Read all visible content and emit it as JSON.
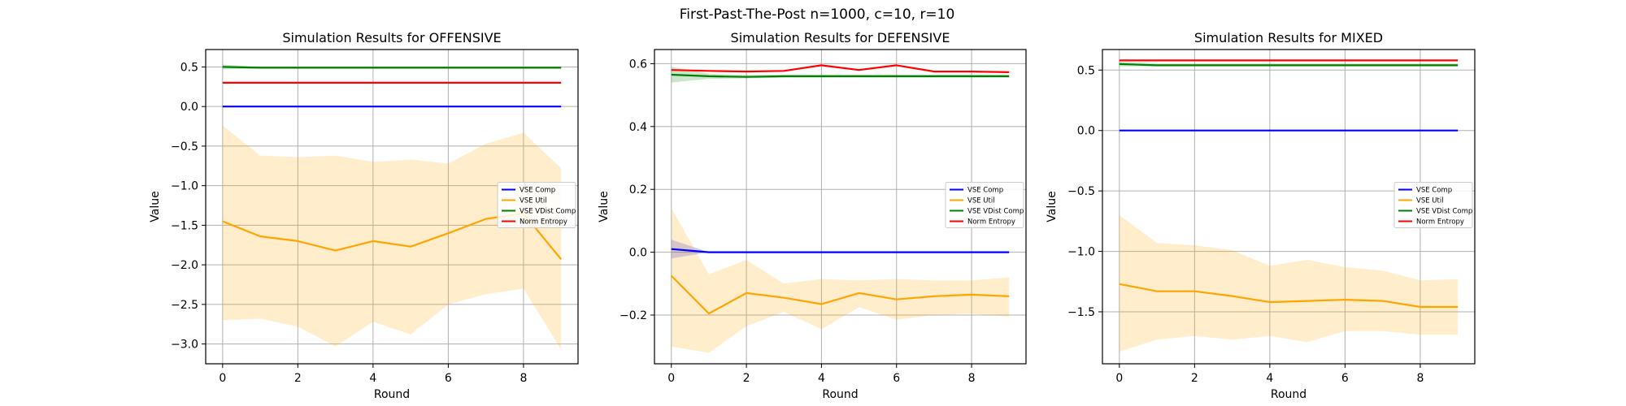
{
  "figure": {
    "suptitle": "First-Past-The-Post n=1000, c=10, r=10"
  },
  "colors": {
    "VSE Comp": "#0000ff",
    "VSE Util": "#ffa500",
    "VSE VDist Comp": "#008000",
    "Norm Entropy": "#ff0000",
    "grid": "#b0b0b0"
  },
  "chart_data": [
    {
      "type": "line",
      "title": "Simulation Results for OFFENSIVE",
      "xlabel": "Round",
      "ylabel": "Value",
      "x": [
        0,
        1,
        2,
        3,
        4,
        5,
        6,
        7,
        8,
        9
      ],
      "xlim": [
        -0.45,
        9.45
      ],
      "ylim": [
        -3.25,
        0.72
      ],
      "xticks": [
        0,
        2,
        4,
        6,
        8
      ],
      "yticks": [
        -3.0,
        -2.5,
        -2.0,
        -1.5,
        -1.0,
        -0.5,
        0.0,
        0.5
      ],
      "ytick_labels": [
        "−3.0",
        "−2.5",
        "−2.0",
        "−1.5",
        "−1.0",
        "−0.5",
        "0.0",
        "0.5"
      ],
      "grid": true,
      "legend_position": "center-right",
      "series": [
        {
          "name": "VSE Comp",
          "values": [
            0,
            0,
            0,
            0,
            0,
            0,
            0,
            0,
            0,
            0
          ],
          "band_low": [
            0,
            0,
            0,
            0,
            0,
            0,
            0,
            0,
            0,
            0
          ],
          "band_high": [
            0,
            0,
            0,
            0,
            0,
            0,
            0,
            0,
            0,
            0
          ]
        },
        {
          "name": "VSE Util",
          "values": [
            -1.45,
            -1.64,
            -1.7,
            -1.82,
            -1.7,
            -1.77,
            -1.6,
            -1.42,
            -1.35,
            -1.93
          ],
          "band_low": [
            -2.7,
            -2.68,
            -2.78,
            -3.03,
            -2.72,
            -2.88,
            -2.5,
            -2.37,
            -2.3,
            -3.07
          ],
          "band_high": [
            -0.24,
            -0.62,
            -0.64,
            -0.62,
            -0.7,
            -0.67,
            -0.72,
            -0.47,
            -0.33,
            -0.78
          ]
        },
        {
          "name": "VSE VDist Comp",
          "values": [
            0.5,
            0.49,
            0.49,
            0.49,
            0.49,
            0.49,
            0.49,
            0.49,
            0.49,
            0.49
          ],
          "band_low": [
            0.47,
            0.48,
            0.48,
            0.48,
            0.48,
            0.48,
            0.48,
            0.48,
            0.48,
            0.48
          ],
          "band_high": [
            0.53,
            0.5,
            0.5,
            0.5,
            0.5,
            0.5,
            0.5,
            0.5,
            0.5,
            0.5
          ]
        },
        {
          "name": "Norm Entropy",
          "values": [
            0.3,
            0.3,
            0.3,
            0.3,
            0.3,
            0.3,
            0.3,
            0.3,
            0.3,
            0.3
          ],
          "band_low": [
            0.3,
            0.3,
            0.3,
            0.3,
            0.3,
            0.3,
            0.3,
            0.3,
            0.3,
            0.3
          ],
          "band_high": [
            0.3,
            0.3,
            0.3,
            0.3,
            0.3,
            0.3,
            0.3,
            0.3,
            0.3,
            0.3
          ]
        }
      ]
    },
    {
      "type": "line",
      "title": "Simulation Results for DEFENSIVE",
      "xlabel": "Round",
      "ylabel": "Value",
      "x": [
        0,
        1,
        2,
        3,
        4,
        5,
        6,
        7,
        8,
        9
      ],
      "xlim": [
        -0.45,
        9.45
      ],
      "ylim": [
        -0.355,
        0.645
      ],
      "xticks": [
        0,
        2,
        4,
        6,
        8
      ],
      "yticks": [
        -0.2,
        0.0,
        0.2,
        0.4,
        0.6
      ],
      "ytick_labels": [
        "−0.2",
        "0.0",
        "0.2",
        "0.4",
        "0.6"
      ],
      "grid": true,
      "legend_position": "center-right",
      "series": [
        {
          "name": "VSE Comp",
          "values": [
            0.01,
            0.0,
            0,
            0,
            0,
            0,
            0,
            0,
            0,
            0
          ],
          "band_low": [
            -0.02,
            0.0,
            0,
            0,
            0,
            0,
            0,
            0,
            0,
            0
          ],
          "band_high": [
            0.04,
            0.0,
            0,
            0,
            0,
            0,
            0,
            0,
            0,
            0
          ]
        },
        {
          "name": "VSE Util",
          "values": [
            -0.075,
            -0.195,
            -0.13,
            -0.145,
            -0.165,
            -0.13,
            -0.15,
            -0.14,
            -0.135,
            -0.14
          ],
          "band_low": [
            -0.3,
            -0.32,
            -0.235,
            -0.19,
            -0.245,
            -0.175,
            -0.215,
            -0.2,
            -0.195,
            -0.205
          ],
          "band_high": [
            0.14,
            -0.07,
            -0.025,
            -0.1,
            -0.085,
            -0.09,
            -0.085,
            -0.09,
            -0.09,
            -0.08
          ]
        },
        {
          "name": "VSE VDist Comp",
          "values": [
            0.565,
            0.56,
            0.558,
            0.56,
            0.56,
            0.56,
            0.56,
            0.56,
            0.56,
            0.56
          ],
          "band_low": [
            0.54,
            0.552,
            0.553,
            0.555,
            0.555,
            0.555,
            0.555,
            0.555,
            0.555,
            0.555
          ],
          "band_high": [
            0.59,
            0.568,
            0.564,
            0.565,
            0.565,
            0.565,
            0.565,
            0.565,
            0.565,
            0.565
          ]
        },
        {
          "name": "Norm Entropy",
          "values": [
            0.58,
            0.577,
            0.575,
            0.577,
            0.595,
            0.58,
            0.595,
            0.575,
            0.575,
            0.573
          ],
          "band_low": [
            0.58,
            0.577,
            0.575,
            0.577,
            0.595,
            0.58,
            0.595,
            0.575,
            0.575,
            0.573
          ],
          "band_high": [
            0.58,
            0.577,
            0.575,
            0.577,
            0.595,
            0.58,
            0.595,
            0.575,
            0.575,
            0.573
          ]
        }
      ]
    },
    {
      "type": "line",
      "title": "Simulation Results for MIXED",
      "xlabel": "Round",
      "ylabel": "Value",
      "x": [
        0,
        1,
        2,
        3,
        4,
        5,
        6,
        7,
        8,
        9
      ],
      "xlim": [
        -0.45,
        9.45
      ],
      "ylim": [
        -1.93,
        0.67
      ],
      "xticks": [
        0,
        2,
        4,
        6,
        8
      ],
      "yticks": [
        -1.5,
        -1.0,
        -0.5,
        0.0,
        0.5
      ],
      "ytick_labels": [
        "−1.5",
        "−1.0",
        "−0.5",
        "0.0",
        "0.5"
      ],
      "grid": true,
      "legend_position": "center-right",
      "series": [
        {
          "name": "VSE Comp",
          "values": [
            0,
            0,
            0,
            0,
            0,
            0,
            0,
            0,
            0,
            0
          ],
          "band_low": [
            0,
            0,
            0,
            0,
            0,
            0,
            0,
            0,
            0,
            0
          ],
          "band_high": [
            0,
            0,
            0,
            0,
            0,
            0,
            0,
            0,
            0,
            0
          ]
        },
        {
          "name": "VSE Util",
          "values": [
            -1.27,
            -1.33,
            -1.33,
            -1.37,
            -1.42,
            -1.41,
            -1.4,
            -1.41,
            -1.46,
            -1.46
          ],
          "band_low": [
            -1.83,
            -1.73,
            -1.7,
            -1.73,
            -1.7,
            -1.75,
            -1.66,
            -1.66,
            -1.69,
            -1.69
          ],
          "band_high": [
            -0.7,
            -0.93,
            -0.95,
            -0.99,
            -1.12,
            -1.07,
            -1.13,
            -1.16,
            -1.24,
            -1.23
          ]
        },
        {
          "name": "VSE VDist Comp",
          "values": [
            0.55,
            0.54,
            0.54,
            0.54,
            0.54,
            0.54,
            0.54,
            0.54,
            0.54,
            0.54
          ],
          "band_low": [
            0.53,
            0.53,
            0.53,
            0.53,
            0.53,
            0.53,
            0.53,
            0.53,
            0.53,
            0.53
          ],
          "band_high": [
            0.57,
            0.555,
            0.555,
            0.555,
            0.555,
            0.555,
            0.555,
            0.555,
            0.555,
            0.555
          ]
        },
        {
          "name": "Norm Entropy",
          "values": [
            0.58,
            0.58,
            0.58,
            0.58,
            0.58,
            0.58,
            0.58,
            0.58,
            0.58,
            0.58
          ],
          "band_low": [
            0.58,
            0.58,
            0.58,
            0.58,
            0.58,
            0.58,
            0.58,
            0.58,
            0.58,
            0.58
          ],
          "band_high": [
            0.58,
            0.58,
            0.58,
            0.58,
            0.58,
            0.58,
            0.58,
            0.58,
            0.58,
            0.58
          ]
        }
      ]
    }
  ]
}
